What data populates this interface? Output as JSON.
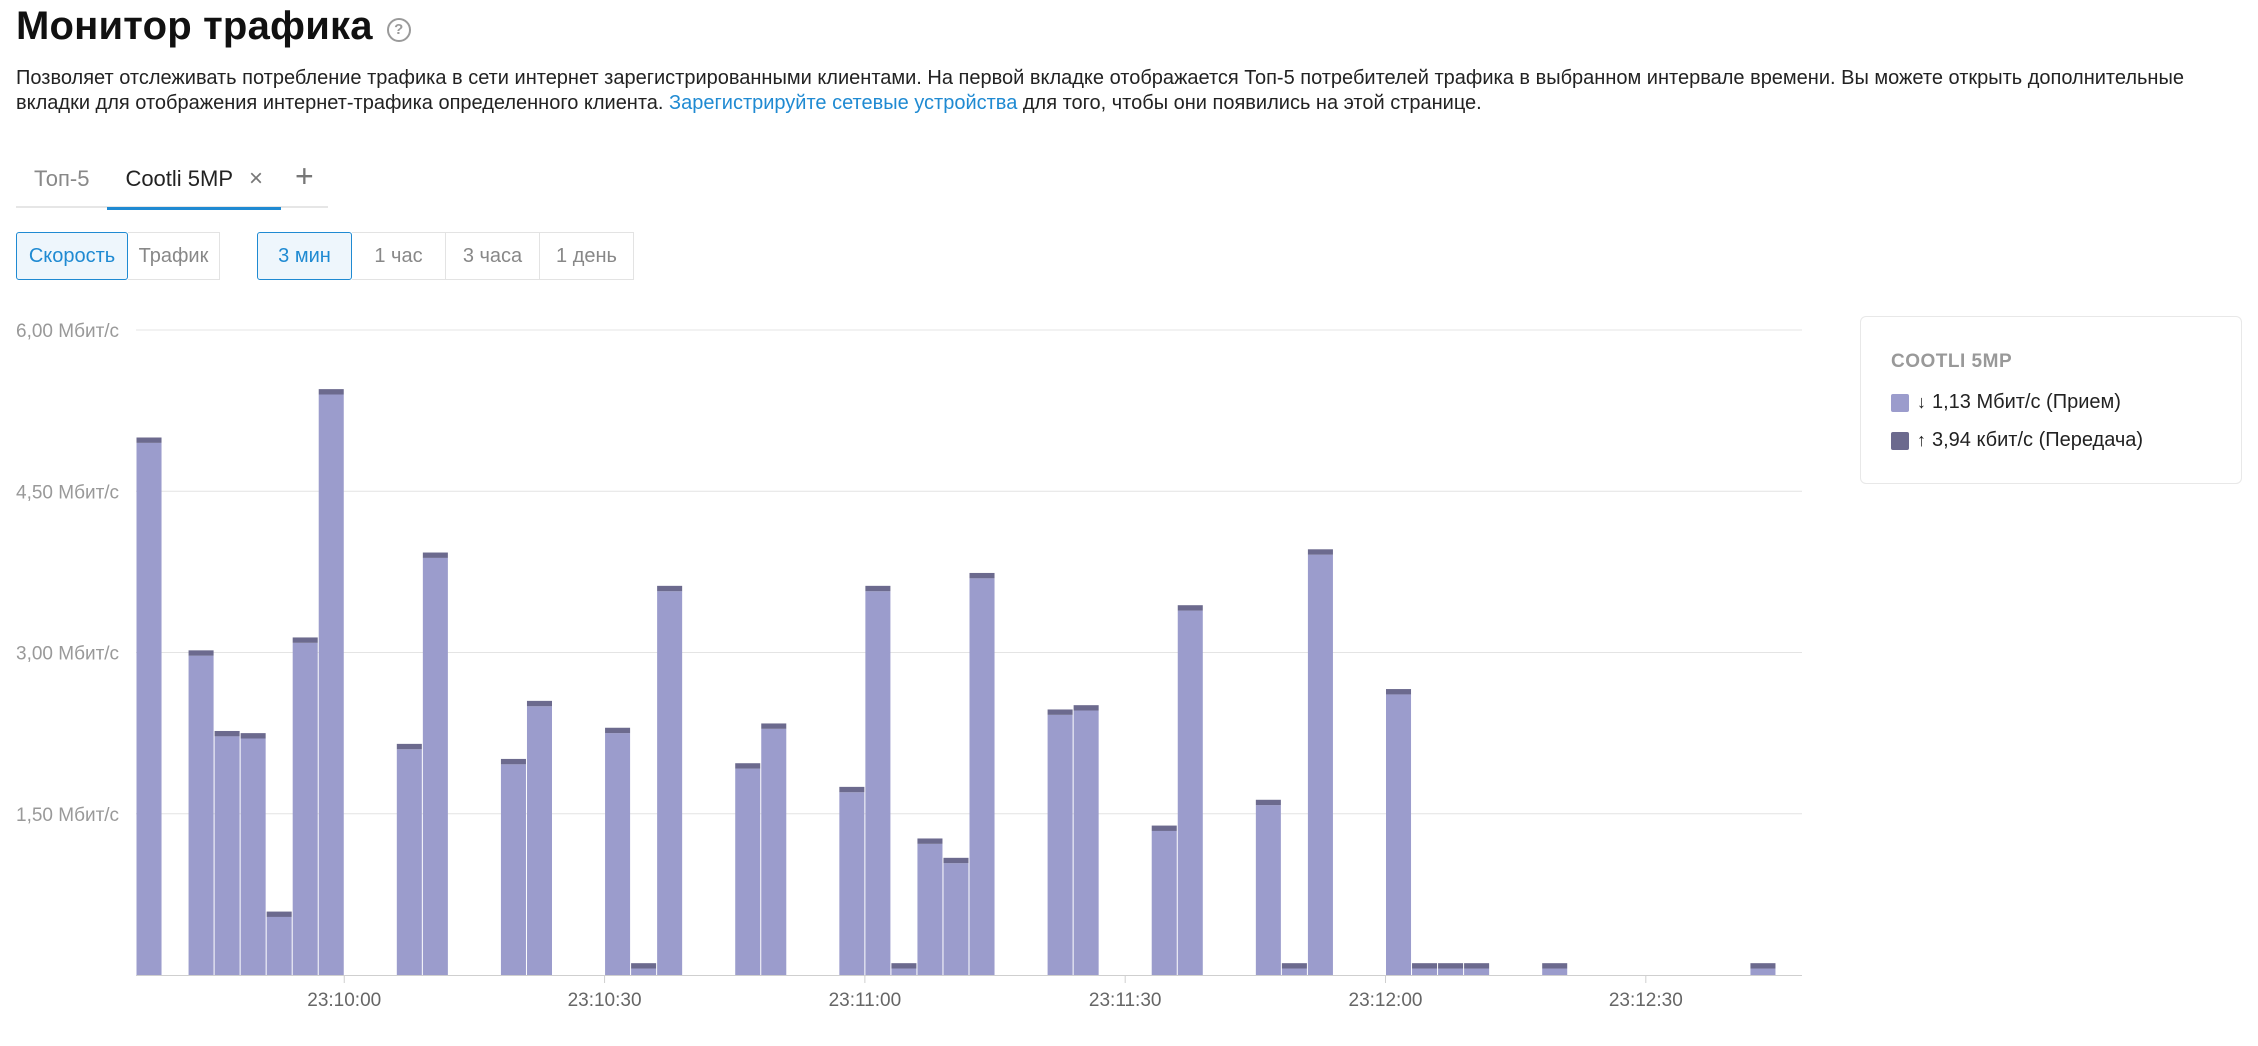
{
  "header": {
    "title": "Монитор трафика",
    "help": "?"
  },
  "description": {
    "text_before": "Позволяет отслеживать потребление трафика в сети интернет зарегистрированными клиентами. На первой вкладке отображается Топ-5 потребителей трафика в выбранном интервале времени. Вы можете открыть дополнительные вкладки для отображения интернет-трафика определенного клиента. ",
    "link": "Зарегистрируйте сетевые устройства",
    "text_after": " для того, чтобы они появились на этой странице."
  },
  "tabs": [
    {
      "label": "Топ-5",
      "active": false
    },
    {
      "label": "Cootli 5MP",
      "active": true,
      "close": "×"
    }
  ],
  "tab_add": "+",
  "mode_buttons": [
    {
      "label": "Скорость",
      "active": true
    },
    {
      "label": "Трафик",
      "active": false
    }
  ],
  "range_buttons": [
    {
      "label": "3 мин",
      "active": true
    },
    {
      "label": "1 час",
      "active": false
    },
    {
      "label": "3 часа",
      "active": false
    },
    {
      "label": "1 день",
      "active": false
    }
  ],
  "legend": {
    "title": "COOTLI 5MP",
    "rx": {
      "arrow": "↓",
      "text": "1,13 Мбит/с (Прием)",
      "color": "#9b9ccc"
    },
    "tx": {
      "arrow": "↑",
      "text": "3,94 кбит/с (Передача)",
      "color": "#6c6a8e"
    }
  },
  "chart_data": {
    "type": "bar",
    "stacked": true,
    "unit": "Мбит/с",
    "y_ticks": [
      "6,00 Мбит/с",
      "4,50 Мбит/с",
      "3,00 Мбит/с",
      "1,50 Мбит/с"
    ],
    "y_tick_values": [
      6.0,
      4.5,
      3.0,
      1.5
    ],
    "ylim": [
      0,
      6.0
    ],
    "x_ticks": [
      "23:10:00",
      "23:10:30",
      "23:11:00",
      "23:11:30",
      "23:12:00",
      "23:12:30"
    ],
    "x_tick_index": [
      8,
      18,
      28,
      38,
      48,
      58
    ],
    "bar_count": 64,
    "colors": {
      "rx": "#9b9ccc",
      "tx": "#6c6a8e"
    },
    "series": [
      {
        "name": "Прием",
        "values": [
          4.95,
          0,
          2.97,
          2.22,
          2.2,
          0.54,
          3.09,
          5.4,
          0,
          0,
          2.1,
          3.88,
          0,
          0,
          1.96,
          2.5,
          0,
          0,
          2.25,
          0.06,
          3.57,
          0,
          0,
          1.92,
          2.29,
          0,
          0,
          1.7,
          3.57,
          0.06,
          1.22,
          1.04,
          3.69,
          0,
          0,
          2.42,
          2.46,
          0,
          0,
          1.34,
          3.39,
          0,
          0,
          1.58,
          0.06,
          3.91,
          0,
          0,
          2.61,
          0.06,
          0.06,
          0.06,
          0,
          0,
          0.06,
          0,
          0,
          0,
          0,
          0,
          0,
          0,
          0.06,
          0
        ]
      },
      {
        "name": "Передача",
        "values": [
          0.05,
          0,
          0.05,
          0.05,
          0.05,
          0.05,
          0.05,
          0.05,
          0,
          0,
          0.05,
          0.05,
          0,
          0,
          0.05,
          0.05,
          0,
          0,
          0.05,
          0.05,
          0.05,
          0,
          0,
          0.05,
          0.05,
          0,
          0,
          0.05,
          0.05,
          0.05,
          0.05,
          0.05,
          0.05,
          0,
          0,
          0.05,
          0.05,
          0,
          0,
          0.05,
          0.05,
          0,
          0,
          0.05,
          0.05,
          0.05,
          0,
          0,
          0.05,
          0.05,
          0.05,
          0.05,
          0,
          0,
          0.05,
          0,
          0,
          0,
          0,
          0,
          0,
          0,
          0.05,
          0
        ]
      }
    ]
  }
}
